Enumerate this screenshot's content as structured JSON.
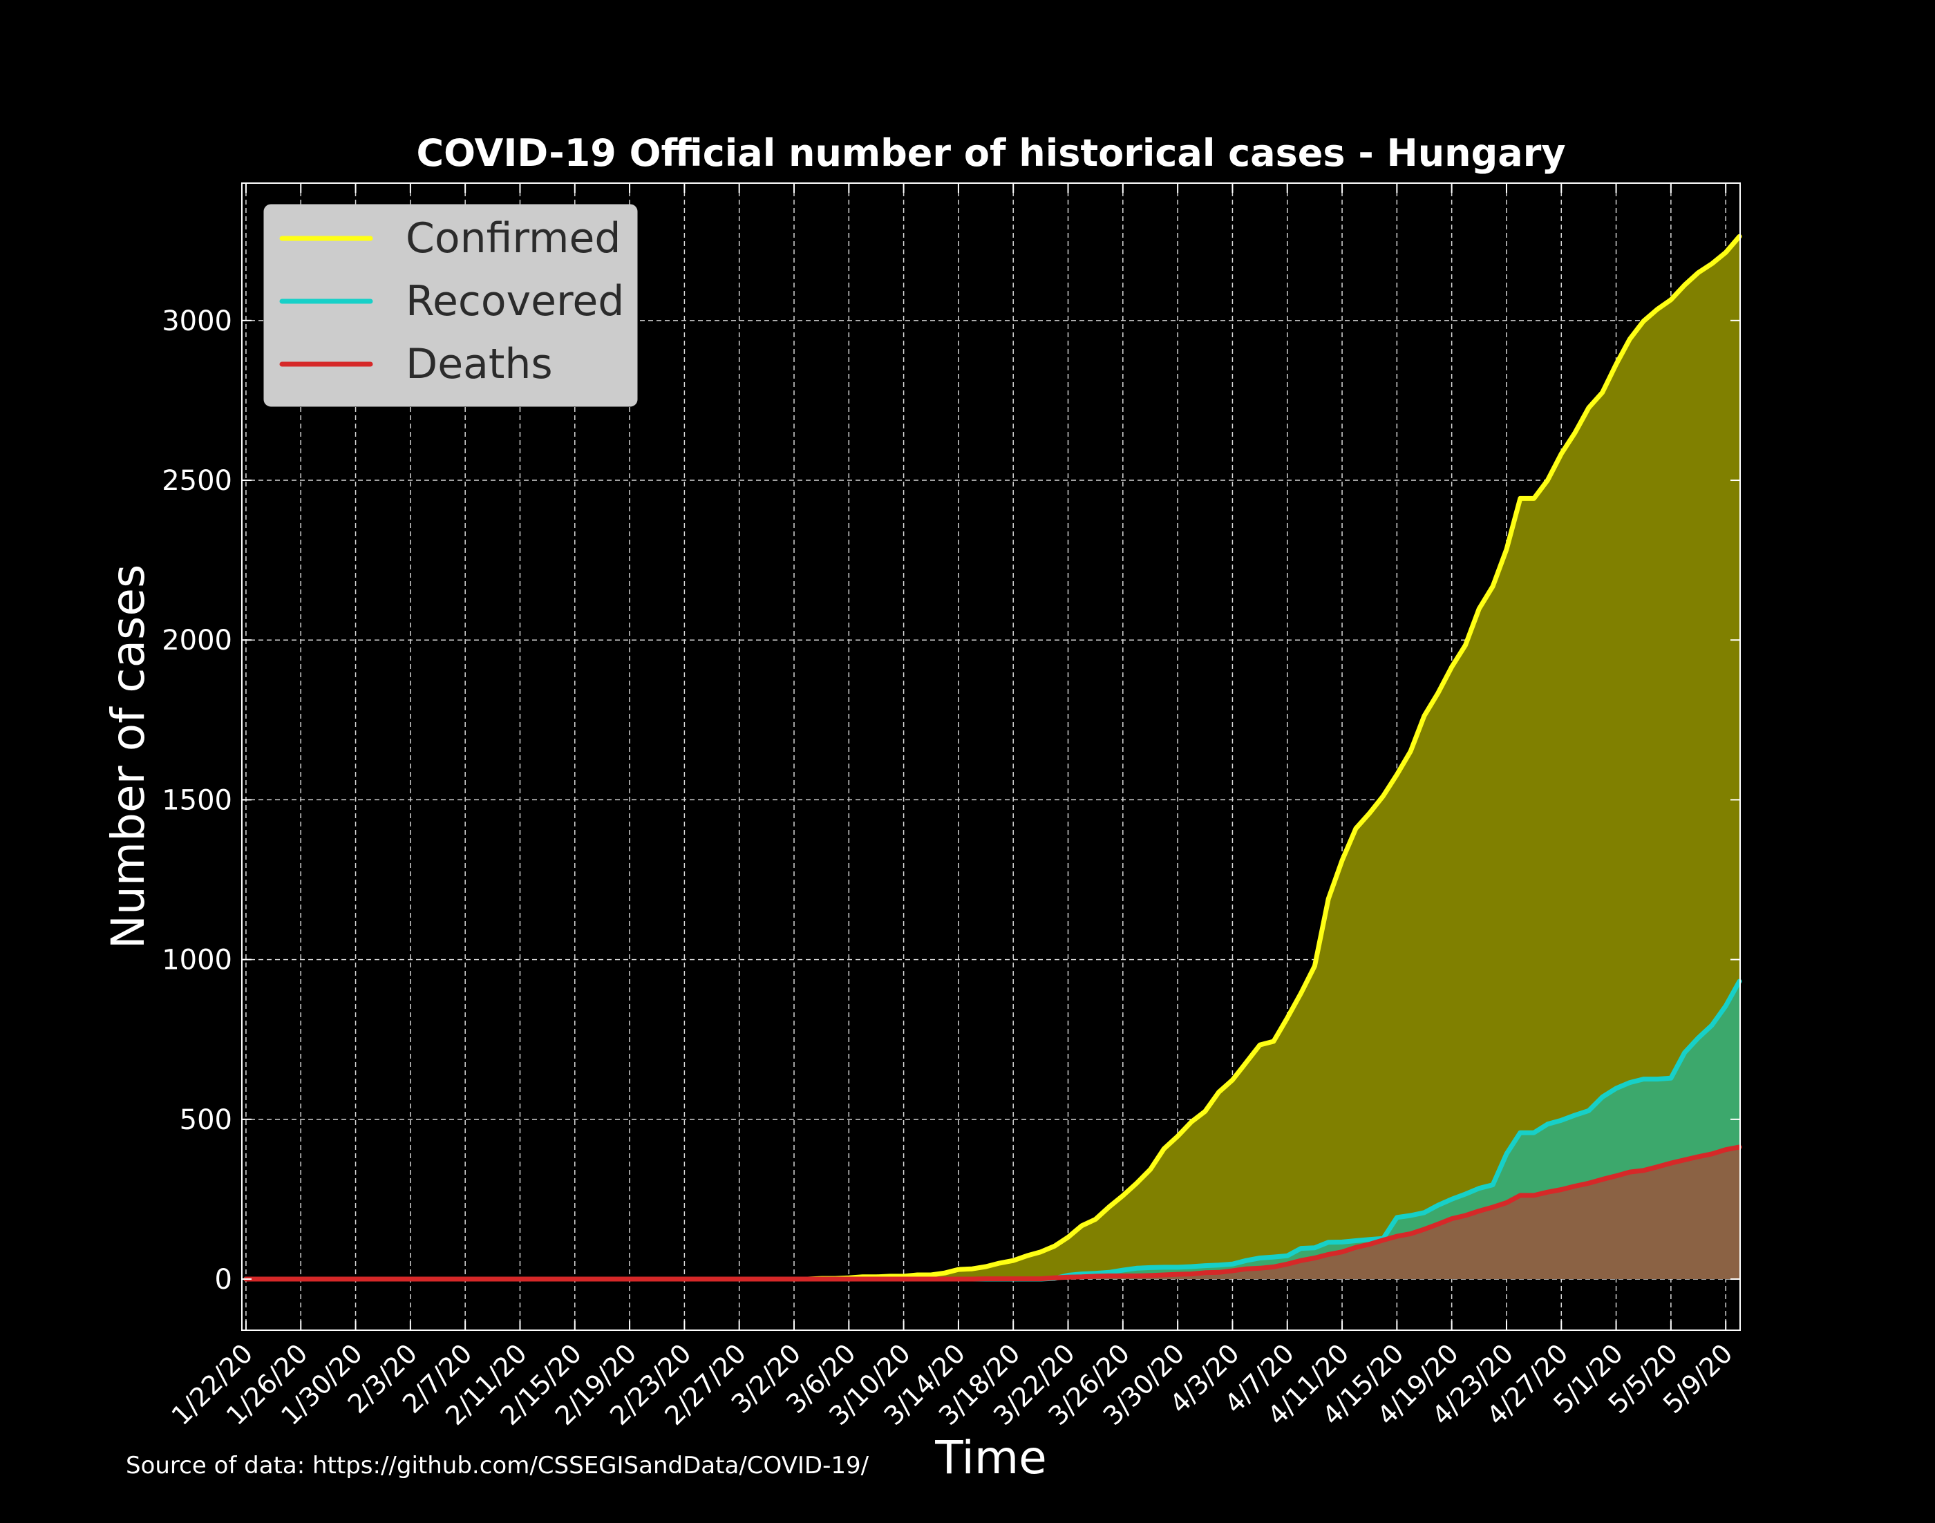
{
  "chart_data": {
    "type": "area",
    "title": "COVID-19 Official number of historical cases - Hungary",
    "xlabel": "Time",
    "ylabel": "Number of cases",
    "source_note": "Source of data: https://github.com/CSSEGISandData/COVID-19/",
    "x_start": "1/22/20",
    "x_end": "5/9/20",
    "x_tick_labels": [
      "1/22/20",
      "1/26/20",
      "1/30/20",
      "2/3/20",
      "2/7/20",
      "2/11/20",
      "2/15/20",
      "2/19/20",
      "2/23/20",
      "2/27/20",
      "3/2/20",
      "3/6/20",
      "3/10/20",
      "3/14/20",
      "3/18/20",
      "3/22/20",
      "3/26/20",
      "3/30/20",
      "4/3/20",
      "4/7/20",
      "4/11/20",
      "4/15/20",
      "4/19/20",
      "4/23/20",
      "4/27/20",
      "5/1/20",
      "5/5/20",
      "5/9/20"
    ],
    "y_ticks": [
      0,
      500,
      1000,
      1500,
      2000,
      2500,
      3000
    ],
    "ylim": [
      -160,
      3430
    ],
    "grid": true,
    "legend_position": "top-left",
    "series": [
      {
        "name": "Confirmed",
        "line_color": "#ffff14",
        "fill_color": "#808000",
        "points": [
          [
            "1/22/20",
            0
          ],
          [
            "3/3/20",
            0
          ],
          [
            "3/4/20",
            2
          ],
          [
            "3/5/20",
            2
          ],
          [
            "3/6/20",
            4
          ],
          [
            "3/7/20",
            7
          ],
          [
            "3/8/20",
            7
          ],
          [
            "3/9/20",
            9
          ],
          [
            "3/10/20",
            9
          ],
          [
            "3/11/20",
            13
          ],
          [
            "3/12/20",
            13
          ],
          [
            "3/13/20",
            19
          ],
          [
            "3/14/20",
            30
          ],
          [
            "3/15/20",
            32
          ],
          [
            "3/16/20",
            39
          ],
          [
            "3/17/20",
            50
          ],
          [
            "3/18/20",
            58
          ],
          [
            "3/19/20",
            73
          ],
          [
            "3/20/20",
            85
          ],
          [
            "3/21/20",
            103
          ],
          [
            "3/22/20",
            131
          ],
          [
            "3/23/20",
            167
          ],
          [
            "3/24/20",
            187
          ],
          [
            "3/25/20",
            226
          ],
          [
            "3/26/20",
            261
          ],
          [
            "3/27/20",
            300
          ],
          [
            "3/28/20",
            343
          ],
          [
            "3/29/20",
            408
          ],
          [
            "3/30/20",
            447
          ],
          [
            "3/31/20",
            492
          ],
          [
            "4/1/20",
            525
          ],
          [
            "4/2/20",
            585
          ],
          [
            "4/3/20",
            623
          ],
          [
            "4/4/20",
            678
          ],
          [
            "4/5/20",
            733
          ],
          [
            "4/6/20",
            744
          ],
          [
            "4/7/20",
            817
          ],
          [
            "4/8/20",
            895
          ],
          [
            "4/9/20",
            980
          ],
          [
            "4/10/20",
            1190
          ],
          [
            "4/11/20",
            1310
          ],
          [
            "4/12/20",
            1410
          ],
          [
            "4/13/20",
            1458
          ],
          [
            "4/14/20",
            1512
          ],
          [
            "4/15/20",
            1579
          ],
          [
            "4/16/20",
            1652
          ],
          [
            "4/17/20",
            1763
          ],
          [
            "4/18/20",
            1834
          ],
          [
            "4/19/20",
            1916
          ],
          [
            "4/20/20",
            1984
          ],
          [
            "4/21/20",
            2098
          ],
          [
            "4/22/20",
            2168
          ],
          [
            "4/23/20",
            2284
          ],
          [
            "4/24/20",
            2443
          ],
          [
            "4/25/20",
            2443
          ],
          [
            "4/26/20",
            2500
          ],
          [
            "4/27/20",
            2583
          ],
          [
            "4/28/20",
            2649
          ],
          [
            "4/29/20",
            2727
          ],
          [
            "4/30/20",
            2775
          ],
          [
            "5/1/20",
            2863
          ],
          [
            "5/2/20",
            2942
          ],
          [
            "5/3/20",
            2998
          ],
          [
            "5/4/20",
            3035
          ],
          [
            "5/5/20",
            3065
          ],
          [
            "5/6/20",
            3111
          ],
          [
            "5/7/20",
            3150
          ],
          [
            "5/8/20",
            3178
          ],
          [
            "5/9/20",
            3213
          ],
          [
            "5/10/20",
            3263
          ]
        ]
      },
      {
        "name": "Recovered",
        "line_color": "#17d0c8",
        "fill_color": "#3ca86c",
        "points": [
          [
            "1/22/20",
            0
          ],
          [
            "3/20/20",
            0
          ],
          [
            "3/21/20",
            2
          ],
          [
            "3/22/20",
            12
          ],
          [
            "3/23/20",
            16
          ],
          [
            "3/24/20",
            18
          ],
          [
            "3/25/20",
            21
          ],
          [
            "3/26/20",
            28
          ],
          [
            "3/27/20",
            34
          ],
          [
            "3/28/20",
            36
          ],
          [
            "3/29/20",
            37
          ],
          [
            "3/30/20",
            37
          ],
          [
            "3/31/20",
            39
          ],
          [
            "4/1/20",
            42
          ],
          [
            "4/2/20",
            44
          ],
          [
            "4/3/20",
            47
          ],
          [
            "4/4/20",
            58
          ],
          [
            "4/5/20",
            66
          ],
          [
            "4/6/20",
            69
          ],
          [
            "4/7/20",
            73
          ],
          [
            "4/8/20",
            96
          ],
          [
            "4/9/20",
            98
          ],
          [
            "4/10/20",
            115
          ],
          [
            "4/11/20",
            116
          ],
          [
            "4/12/20",
            120
          ],
          [
            "4/13/20",
            124
          ],
          [
            "4/14/20",
            127
          ],
          [
            "4/15/20",
            193
          ],
          [
            "4/16/20",
            199
          ],
          [
            "4/17/20",
            208
          ],
          [
            "4/18/20",
            231
          ],
          [
            "4/19/20",
            250
          ],
          [
            "4/20/20",
            266
          ],
          [
            "4/21/20",
            284
          ],
          [
            "4/22/20",
            295
          ],
          [
            "4/23/20",
            392
          ],
          [
            "4/24/20",
            458
          ],
          [
            "4/25/20",
            458
          ],
          [
            "4/26/20",
            485
          ],
          [
            "4/27/20",
            497
          ],
          [
            "4/28/20",
            513
          ],
          [
            "4/29/20",
            527
          ],
          [
            "4/30/20",
            570
          ],
          [
            "5/1/20",
            597
          ],
          [
            "5/2/20",
            615
          ],
          [
            "5/3/20",
            626
          ],
          [
            "5/4/20",
            626
          ],
          [
            "5/5/20",
            629
          ],
          [
            "5/6/20",
            709
          ],
          [
            "5/7/20",
            755
          ],
          [
            "5/8/20",
            795
          ],
          [
            "5/9/20",
            855
          ],
          [
            "5/10/20",
            932
          ]
        ]
      },
      {
        "name": "Deaths",
        "line_color": "#d62828",
        "fill_color": "#8b6244",
        "points": [
          [
            "1/22/20",
            0
          ],
          [
            "3/15/20",
            0
          ],
          [
            "3/16/20",
            1
          ],
          [
            "3/20/20",
            1
          ],
          [
            "3/21/20",
            4
          ],
          [
            "3/22/20",
            6
          ],
          [
            "3/23/20",
            7
          ],
          [
            "3/24/20",
            9
          ],
          [
            "3/25/20",
            10
          ],
          [
            "3/26/20",
            10
          ],
          [
            "3/27/20",
            10
          ],
          [
            "3/28/20",
            11
          ],
          [
            "3/29/20",
            13
          ],
          [
            "3/30/20",
            15
          ],
          [
            "3/31/20",
            16
          ],
          [
            "4/1/20",
            20
          ],
          [
            "4/2/20",
            21
          ],
          [
            "4/3/20",
            26
          ],
          [
            "4/4/20",
            32
          ],
          [
            "4/5/20",
            34
          ],
          [
            "4/6/20",
            38
          ],
          [
            "4/7/20",
            47
          ],
          [
            "4/8/20",
            58
          ],
          [
            "4/9/20",
            66
          ],
          [
            "4/10/20",
            77
          ],
          [
            "4/11/20",
            85
          ],
          [
            "4/12/20",
            99
          ],
          [
            "4/13/20",
            109
          ],
          [
            "4/14/20",
            122
          ],
          [
            "4/15/20",
            134
          ],
          [
            "4/16/20",
            142
          ],
          [
            "4/17/20",
            156
          ],
          [
            "4/18/20",
            172
          ],
          [
            "4/19/20",
            189
          ],
          [
            "4/20/20",
            199
          ],
          [
            "4/21/20",
            213
          ],
          [
            "4/22/20",
            225
          ],
          [
            "4/23/20",
            239
          ],
          [
            "4/24/20",
            262
          ],
          [
            "4/25/20",
            262
          ],
          [
            "4/26/20",
            272
          ],
          [
            "4/27/20",
            280
          ],
          [
            "4/28/20",
            291
          ],
          [
            "4/29/20",
            300
          ],
          [
            "4/30/20",
            312
          ],
          [
            "5/1/20",
            323
          ],
          [
            "5/2/20",
            335
          ],
          [
            "5/3/20",
            340
          ],
          [
            "5/4/20",
            351
          ],
          [
            "5/5/20",
            363
          ],
          [
            "5/6/20",
            373
          ],
          [
            "5/7/20",
            383
          ],
          [
            "5/8/20",
            392
          ],
          [
            "5/9/20",
            405
          ],
          [
            "5/10/20",
            413
          ]
        ]
      }
    ]
  }
}
